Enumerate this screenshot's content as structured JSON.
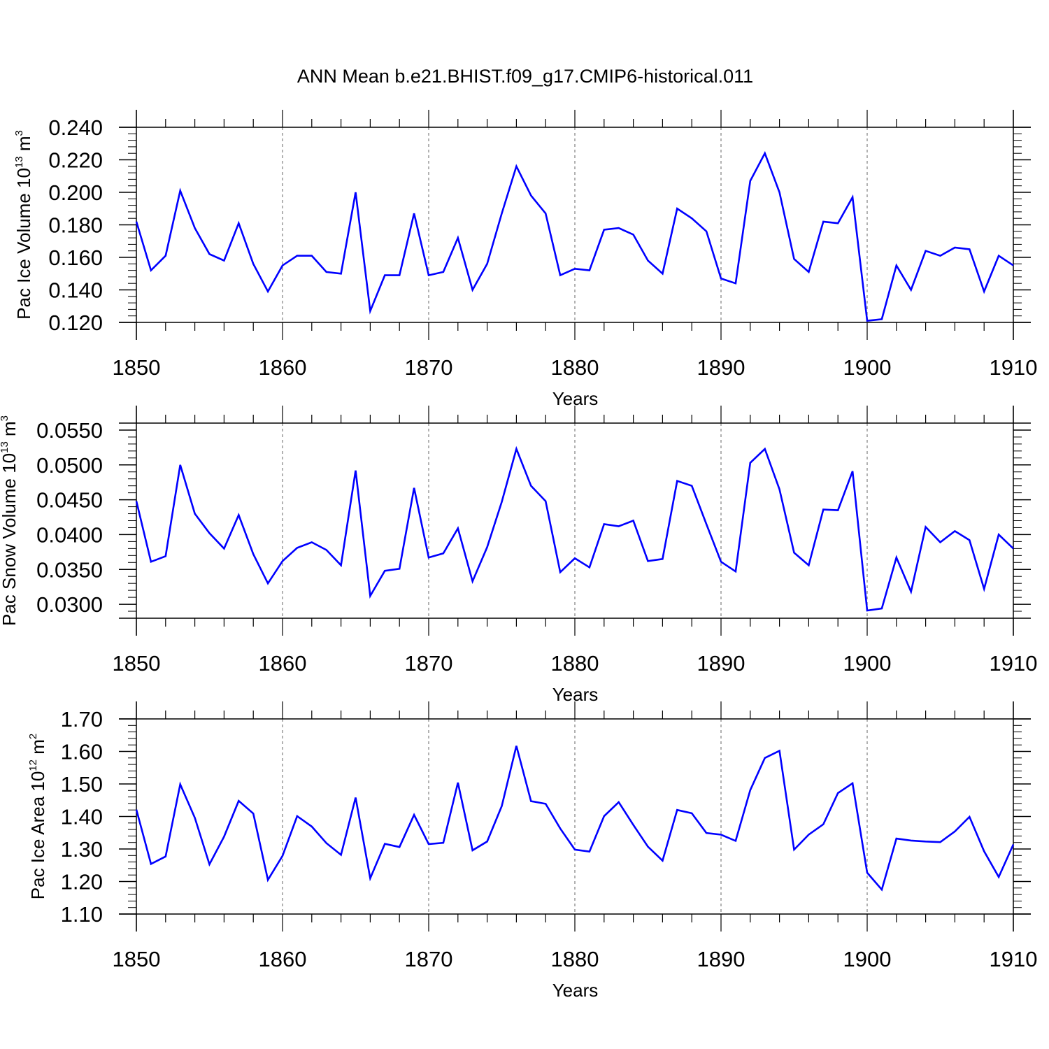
{
  "title": "ANN Mean b.e21.BHIST.f09_g17.CMIP6-historical.011",
  "line_color": "#0000ff",
  "grid_color": "#999999",
  "chart_data": [
    {
      "type": "line",
      "ylabel": {
        "prefix": "Pac Ice Volume 10",
        "exp1": "13",
        "mid": " m",
        "exp2": "3"
      },
      "xlabel": "Years",
      "xlim": [
        1850,
        1910
      ],
      "ylim": [
        0.12,
        0.24
      ],
      "x_major": [
        "1850",
        "1860",
        "1870",
        "1880",
        "1890",
        "1900",
        "1910"
      ],
      "y_ticks": [
        "0.120",
        "0.140",
        "0.160",
        "0.180",
        "0.200",
        "0.220",
        "0.240"
      ],
      "y_minor_step": 0.004,
      "grid": "x-major-dashed",
      "x": [
        1850,
        1851,
        1852,
        1853,
        1854,
        1855,
        1856,
        1857,
        1858,
        1859,
        1860,
        1861,
        1862,
        1863,
        1864,
        1865,
        1866,
        1867,
        1868,
        1869,
        1870,
        1871,
        1872,
        1873,
        1874,
        1875,
        1876,
        1877,
        1878,
        1879,
        1880,
        1881,
        1882,
        1883,
        1884,
        1885,
        1886,
        1887,
        1888,
        1889,
        1890,
        1891,
        1892,
        1893,
        1894,
        1895,
        1896,
        1897,
        1898,
        1899,
        1900,
        1901,
        1902,
        1903,
        1904,
        1905,
        1906,
        1907,
        1908,
        1909,
        1910
      ],
      "values": [
        0.182,
        0.152,
        0.161,
        0.201,
        0.178,
        0.162,
        0.158,
        0.181,
        0.156,
        0.139,
        0.155,
        0.161,
        0.161,
        0.151,
        0.15,
        0.2,
        0.127,
        0.149,
        0.149,
        0.187,
        0.149,
        0.151,
        0.172,
        0.14,
        0.156,
        0.187,
        0.216,
        0.198,
        0.187,
        0.149,
        0.153,
        0.152,
        0.177,
        0.178,
        0.174,
        0.158,
        0.15,
        0.19,
        0.184,
        0.176,
        0.147,
        0.144,
        0.207,
        0.224,
        0.2,
        0.159,
        0.151,
        0.182,
        0.181,
        0.197,
        0.121,
        0.122,
        0.155,
        0.14,
        0.164,
        0.161,
        0.166,
        0.165,
        0.139,
        0.161,
        0.155
      ]
    },
    {
      "type": "line",
      "ylabel": {
        "prefix": "Pac Snow Volume 10",
        "exp1": "13",
        "mid": " m",
        "exp2": "3"
      },
      "xlabel": "Years",
      "xlim": [
        1850,
        1910
      ],
      "ylim": [
        0.028,
        0.056
      ],
      "x_major": [
        "1850",
        "1860",
        "1870",
        "1880",
        "1890",
        "1900",
        "1910"
      ],
      "y_ticks": [
        "0.0300",
        "0.0350",
        "0.0400",
        "0.0450",
        "0.0500",
        "0.0550"
      ],
      "y_minor_step": 0.001,
      "grid": "x-major-dashed",
      "x": [
        1850,
        1851,
        1852,
        1853,
        1854,
        1855,
        1856,
        1857,
        1858,
        1859,
        1860,
        1861,
        1862,
        1863,
        1864,
        1865,
        1866,
        1867,
        1868,
        1869,
        1870,
        1871,
        1872,
        1873,
        1874,
        1875,
        1876,
        1877,
        1878,
        1879,
        1880,
        1881,
        1882,
        1883,
        1884,
        1885,
        1886,
        1887,
        1888,
        1889,
        1890,
        1891,
        1892,
        1893,
        1894,
        1895,
        1896,
        1897,
        1898,
        1899,
        1900,
        1901,
        1902,
        1903,
        1904,
        1905,
        1906,
        1907,
        1908,
        1909,
        1910
      ],
      "values": [
        0.0448,
        0.0361,
        0.0369,
        0.05,
        0.043,
        0.0402,
        0.038,
        0.0428,
        0.0372,
        0.033,
        0.0362,
        0.0381,
        0.0389,
        0.0378,
        0.0356,
        0.0492,
        0.0312,
        0.0348,
        0.0351,
        0.0467,
        0.0367,
        0.0373,
        0.0409,
        0.0333,
        0.0382,
        0.0447,
        0.0523,
        0.047,
        0.0448,
        0.0346,
        0.0366,
        0.0353,
        0.0415,
        0.0412,
        0.042,
        0.0362,
        0.0365,
        0.0477,
        0.047,
        0.0415,
        0.0361,
        0.0347,
        0.0503,
        0.0523,
        0.0465,
        0.0374,
        0.0356,
        0.0436,
        0.0435,
        0.0491,
        0.0291,
        0.0294,
        0.0367,
        0.0318,
        0.0411,
        0.0389,
        0.0405,
        0.0392,
        0.0322,
        0.04,
        0.038
      ]
    },
    {
      "type": "line",
      "ylabel": {
        "prefix": "Pac Ice Area 10",
        "exp1": "12",
        "mid": " m",
        "exp2": "2"
      },
      "xlabel": "Years",
      "xlim": [
        1850,
        1910
      ],
      "ylim": [
        1.1,
        1.7
      ],
      "x_major": [
        "1850",
        "1860",
        "1870",
        "1880",
        "1890",
        "1900",
        "1910"
      ],
      "y_ticks": [
        "1.10",
        "1.20",
        "1.30",
        "1.40",
        "1.50",
        "1.60",
        "1.70"
      ],
      "y_minor_step": 0.02,
      "grid": "x-major-dashed",
      "x": [
        1850,
        1851,
        1852,
        1853,
        1854,
        1855,
        1856,
        1857,
        1858,
        1859,
        1860,
        1861,
        1862,
        1863,
        1864,
        1865,
        1866,
        1867,
        1868,
        1869,
        1870,
        1871,
        1872,
        1873,
        1874,
        1875,
        1876,
        1877,
        1878,
        1879,
        1880,
        1881,
        1882,
        1883,
        1884,
        1885,
        1886,
        1887,
        1888,
        1889,
        1890,
        1891,
        1892,
        1893,
        1894,
        1895,
        1896,
        1897,
        1898,
        1899,
        1900,
        1901,
        1902,
        1903,
        1904,
        1905,
        1906,
        1907,
        1908,
        1909,
        1910
      ],
      "values": [
        1.421,
        1.254,
        1.277,
        1.499,
        1.396,
        1.253,
        1.338,
        1.448,
        1.409,
        1.205,
        1.279,
        1.401,
        1.369,
        1.318,
        1.282,
        1.458,
        1.21,
        1.316,
        1.306,
        1.405,
        1.315,
        1.319,
        1.504,
        1.296,
        1.323,
        1.432,
        1.617,
        1.447,
        1.439,
        1.363,
        1.298,
        1.292,
        1.401,
        1.444,
        1.374,
        1.307,
        1.264,
        1.42,
        1.41,
        1.349,
        1.344,
        1.325,
        1.481,
        1.58,
        1.602,
        1.298,
        1.344,
        1.376,
        1.472,
        1.502,
        1.227,
        1.175,
        1.332,
        1.326,
        1.323,
        1.321,
        1.354,
        1.399,
        1.293,
        1.214,
        1.314
      ]
    }
  ]
}
